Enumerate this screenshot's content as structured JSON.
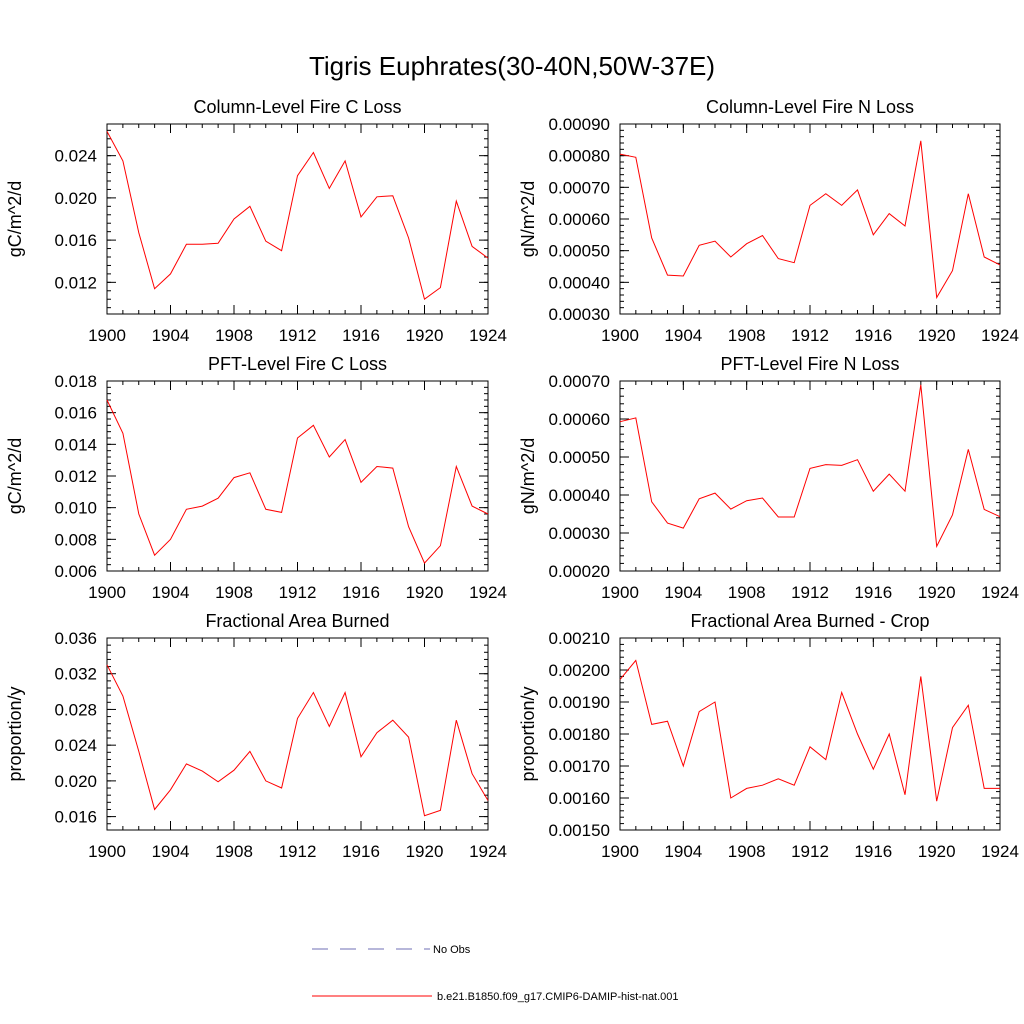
{
  "page_title": "Tigris Euphrates(30-40N,50W-37E)",
  "colors": {
    "model_line": "#ff0000",
    "obs_line": "#6f6fb4",
    "axis": "#000000"
  },
  "legend": [
    {
      "label": "No Obs",
      "style": "dashed",
      "color": "#6f6fb4"
    },
    {
      "label": "b.e21.B1850.f09_g17.CMIP6-DAMIP-hist-nat.001",
      "style": "solid",
      "color": "#ff0000"
    }
  ],
  "chart_data": [
    {
      "type": "line",
      "title": "Column-Level Fire C Loss",
      "ylabel": "gC/m^2/d",
      "xlim": [
        1900,
        1924
      ],
      "ylim": [
        0.009,
        0.027
      ],
      "x_ticks": [
        "1900",
        "1904",
        "1908",
        "1912",
        "1916",
        "1920",
        "1924"
      ],
      "y_ticks": [
        "0.012",
        "0.016",
        "0.020",
        "0.024"
      ],
      "x": [
        1900,
        1901,
        1902,
        1903,
        1904,
        1905,
        1906,
        1907,
        1908,
        1909,
        1910,
        1911,
        1912,
        1913,
        1914,
        1915,
        1916,
        1917,
        1918,
        1919,
        1920,
        1921,
        1922,
        1923,
        1924
      ],
      "series": [
        {
          "values": [
            0.0263,
            0.0235,
            0.0167,
            0.0114,
            0.0128,
            0.0156,
            0.0156,
            0.0157,
            0.018,
            0.0192,
            0.0159,
            0.015,
            0.0221,
            0.0243,
            0.0209,
            0.0235,
            0.0182,
            0.0201,
            0.0202,
            0.0162,
            0.0104,
            0.0115,
            0.0197,
            0.0154,
            0.0143
          ]
        }
      ]
    },
    {
      "type": "line",
      "title": "Column-Level Fire N Loss",
      "ylabel": "gN/m^2/d",
      "xlim": [
        1900,
        1924
      ],
      "ylim": [
        0.0003,
        0.0009
      ],
      "x_ticks": [
        "1900",
        "1904",
        "1908",
        "1912",
        "1916",
        "1920",
        "1924"
      ],
      "y_ticks": [
        "0.00030",
        "0.00040",
        "0.00050",
        "0.00060",
        "0.00070",
        "0.00080",
        "0.00090"
      ],
      "x": [
        1900,
        1901,
        1902,
        1903,
        1904,
        1905,
        1906,
        1907,
        1908,
        1909,
        1910,
        1911,
        1912,
        1913,
        1914,
        1915,
        1916,
        1917,
        1918,
        1919,
        1920,
        1921,
        1922,
        1923,
        1924
      ],
      "series": [
        {
          "values": [
            0.000805,
            0.000795,
            0.00054,
            0.000423,
            0.00042,
            0.000517,
            0.00053,
            0.00048,
            0.000522,
            0.000548,
            0.000475,
            0.000462,
            0.000643,
            0.00068,
            0.000643,
            0.000692,
            0.00055,
            0.000617,
            0.000578,
            0.000847,
            0.000352,
            0.000437,
            0.00068,
            0.00048,
            0.000455
          ]
        }
      ]
    },
    {
      "type": "line",
      "title": "PFT-Level Fire C Loss",
      "ylabel": "gC/m^2/d",
      "xlim": [
        1900,
        1924
      ],
      "ylim": [
        0.006,
        0.018
      ],
      "x_ticks": [
        "1900",
        "1904",
        "1908",
        "1912",
        "1916",
        "1920",
        "1924"
      ],
      "y_ticks": [
        "0.006",
        "0.008",
        "0.010",
        "0.012",
        "0.014",
        "0.016",
        "0.018"
      ],
      "x": [
        1900,
        1901,
        1902,
        1903,
        1904,
        1905,
        1906,
        1907,
        1908,
        1909,
        1910,
        1911,
        1912,
        1913,
        1914,
        1915,
        1916,
        1917,
        1918,
        1919,
        1920,
        1921,
        1922,
        1923,
        1924
      ],
      "series": [
        {
          "values": [
            0.0168,
            0.0147,
            0.0096,
            0.007,
            0.008,
            0.0099,
            0.0101,
            0.0106,
            0.0119,
            0.0122,
            0.0099,
            0.0097,
            0.0144,
            0.0152,
            0.0132,
            0.0143,
            0.0116,
            0.0126,
            0.0125,
            0.0088,
            0.0065,
            0.0076,
            0.0126,
            0.0101,
            0.0096
          ]
        }
      ]
    },
    {
      "type": "line",
      "title": "PFT-Level Fire N Loss",
      "ylabel": "gN/m^2/d",
      "xlim": [
        1900,
        1924
      ],
      "ylim": [
        0.0002,
        0.0007
      ],
      "x_ticks": [
        "1900",
        "1904",
        "1908",
        "1912",
        "1916",
        "1920",
        "1924"
      ],
      "y_ticks": [
        "0.00020",
        "0.00030",
        "0.00040",
        "0.00050",
        "0.00060",
        "0.00070"
      ],
      "x": [
        1900,
        1901,
        1902,
        1903,
        1904,
        1905,
        1906,
        1907,
        1908,
        1909,
        1910,
        1911,
        1912,
        1913,
        1914,
        1915,
        1916,
        1917,
        1918,
        1919,
        1920,
        1921,
        1922,
        1923,
        1924
      ],
      "series": [
        {
          "values": [
            0.000593,
            0.000603,
            0.000382,
            0.000326,
            0.000313,
            0.00039,
            0.000405,
            0.000363,
            0.000385,
            0.000392,
            0.000342,
            0.000342,
            0.00047,
            0.00048,
            0.000478,
            0.000493,
            0.00041,
            0.000455,
            0.00041,
            0.00069,
            0.000265,
            0.000348,
            0.00052,
            0.000362,
            0.000343
          ]
        }
      ]
    },
    {
      "type": "line",
      "title": "Fractional Area Burned",
      "ylabel": "proportion/y",
      "xlim": [
        1900,
        1924
      ],
      "ylim": [
        0.0145,
        0.036
      ],
      "x_ticks": [
        "1900",
        "1904",
        "1908",
        "1912",
        "1916",
        "1920",
        "1924"
      ],
      "y_ticks": [
        "0.016",
        "0.020",
        "0.024",
        "0.028",
        "0.032",
        "0.036"
      ],
      "x": [
        1900,
        1901,
        1902,
        1903,
        1904,
        1905,
        1906,
        1907,
        1908,
        1909,
        1910,
        1911,
        1912,
        1913,
        1914,
        1915,
        1916,
        1917,
        1918,
        1919,
        1920,
        1921,
        1922,
        1923,
        1924
      ],
      "series": [
        {
          "values": [
            0.033,
            0.0295,
            0.0233,
            0.0168,
            0.019,
            0.0219,
            0.0211,
            0.0199,
            0.0212,
            0.0233,
            0.02,
            0.0192,
            0.027,
            0.0299,
            0.0261,
            0.0299,
            0.0227,
            0.0254,
            0.0268,
            0.0249,
            0.0161,
            0.0167,
            0.0268,
            0.0208,
            0.0178
          ]
        }
      ]
    },
    {
      "type": "line",
      "title": "Fractional Area Burned - Crop",
      "ylabel": "proportion/y",
      "xlim": [
        1900,
        1924
      ],
      "ylim": [
        0.0015,
        0.0021
      ],
      "x_ticks": [
        "1900",
        "1904",
        "1908",
        "1912",
        "1916",
        "1920",
        "1924"
      ],
      "y_ticks": [
        "0.00150",
        "0.00160",
        "0.00170",
        "0.00180",
        "0.00190",
        "0.00200",
        "0.00210"
      ],
      "x": [
        1900,
        1901,
        1902,
        1903,
        1904,
        1905,
        1906,
        1907,
        1908,
        1909,
        1910,
        1911,
        1912,
        1913,
        1914,
        1915,
        1916,
        1917,
        1918,
        1919,
        1920,
        1921,
        1922,
        1923,
        1924
      ],
      "series": [
        {
          "values": [
            0.00197,
            0.00203,
            0.00183,
            0.00184,
            0.0017,
            0.00187,
            0.0019,
            0.0016,
            0.00163,
            0.00164,
            0.00166,
            0.00164,
            0.00176,
            0.00172,
            0.00193,
            0.0018,
            0.00169,
            0.0018,
            0.00161,
            0.00198,
            0.00159,
            0.00182,
            0.00189,
            0.00163,
            0.00163
          ]
        }
      ]
    }
  ]
}
